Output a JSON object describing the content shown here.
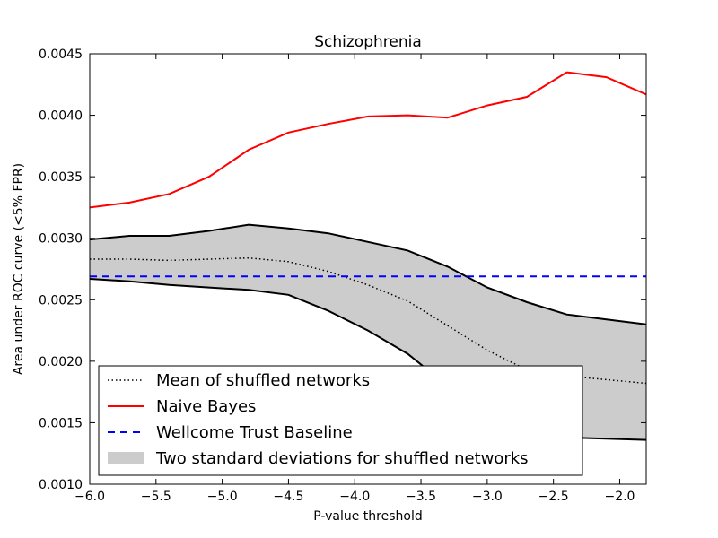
{
  "chart_data": {
    "type": "line",
    "title": "Schizophrenia",
    "xlabel": "P-value threshold",
    "ylabel": "Area under ROC curve (<5% FPR)",
    "xlim": [
      -6.0,
      -1.8
    ],
    "ylim": [
      0.001,
      0.0045
    ],
    "xticks": [
      -6.0,
      -5.5,
      -5.0,
      -4.5,
      -4.0,
      -3.5,
      -3.0,
      -2.5,
      -2.0
    ],
    "xtick_labels": [
      "−6.0",
      "−5.5",
      "−5.0",
      "−4.5",
      "−4.0",
      "−3.5",
      "−3.0",
      "−2.5",
      "−2.0"
    ],
    "yticks": [
      0.001,
      0.0015,
      0.002,
      0.0025,
      0.003,
      0.0035,
      0.004,
      0.0045
    ],
    "ytick_labels": [
      "0.0010",
      "0.0015",
      "0.0020",
      "0.0025",
      "0.0030",
      "0.0035",
      "0.0040",
      "0.0045"
    ],
    "grid": false,
    "legend_position": "bottom-left",
    "x": [
      -6.0,
      -5.7,
      -5.4,
      -5.1,
      -4.8,
      -4.5,
      -4.2,
      -3.9,
      -3.6,
      -3.3,
      -3.0,
      -2.7,
      -2.4,
      -2.1,
      -1.8
    ],
    "series": [
      {
        "name": "Mean of shuffled networks",
        "style": "dotted",
        "color": "#000000",
        "values": [
          0.00283,
          0.00283,
          0.00282,
          0.00283,
          0.00284,
          0.00281,
          0.00273,
          0.00262,
          0.00249,
          0.00229,
          0.00209,
          0.00193,
          0.00188,
          0.00185,
          0.00182
        ]
      },
      {
        "name": "Naive Bayes",
        "style": "solid",
        "color": "#ff0000",
        "values": [
          0.00325,
          0.00329,
          0.00336,
          0.0035,
          0.00372,
          0.00386,
          0.00393,
          0.00399,
          0.004,
          0.00398,
          0.00408,
          0.00415,
          0.00435,
          0.00431,
          0.00417
        ]
      },
      {
        "name": "Wellcome Trust Baseline",
        "style": "dashed",
        "color": "#0000ff",
        "values": [
          0.00269,
          0.00269,
          0.00269,
          0.00269,
          0.00269,
          0.00269,
          0.00269,
          0.00269,
          0.00269,
          0.00269,
          0.00269,
          0.00269,
          0.00269,
          0.00269,
          0.00269
        ]
      }
    ],
    "band": {
      "name": "Two standard deviations for shuffled networks",
      "fill": "#cccccc",
      "upper": [
        0.00299,
        0.00302,
        0.00302,
        0.00306,
        0.00311,
        0.00308,
        0.00304,
        0.00297,
        0.0029,
        0.00277,
        0.0026,
        0.00248,
        0.00238,
        0.00234,
        0.0023
      ],
      "lower": [
        0.00267,
        0.00265,
        0.00262,
        0.0026,
        0.00258,
        0.00254,
        0.00241,
        0.00225,
        0.00206,
        0.0018,
        0.00159,
        0.00146,
        0.00138,
        0.00137,
        0.00136
      ]
    }
  }
}
